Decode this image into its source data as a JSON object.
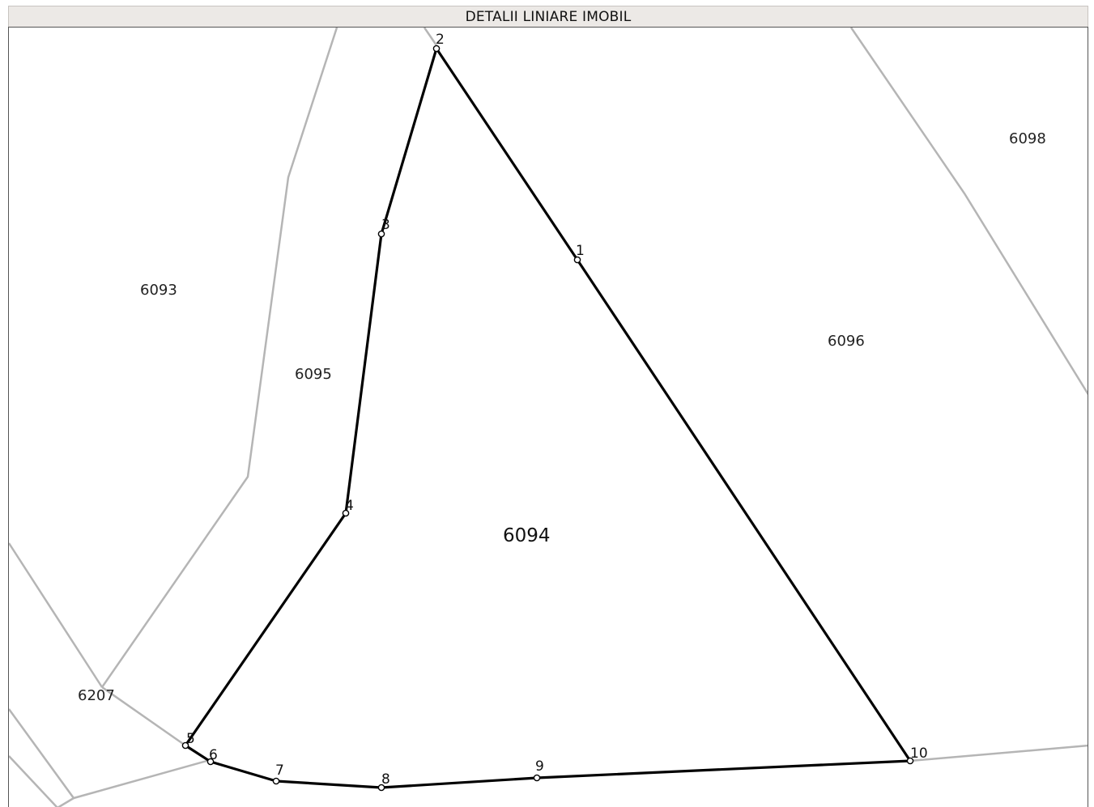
{
  "header": {
    "title": "DETALII LINIARE IMOBIL"
  },
  "colors": {
    "header_bg": "#ece9e6",
    "boundary": "#000000",
    "neighbor_lines": "#b5b5b5"
  },
  "map": {
    "main_parcel": "6094",
    "neighbor_parcels": [
      "6093",
      "6095",
      "6096",
      "6098",
      "6207"
    ],
    "vertices": [
      "1",
      "2",
      "3",
      "4",
      "5",
      "6",
      "7",
      "8",
      "9",
      "10"
    ]
  }
}
